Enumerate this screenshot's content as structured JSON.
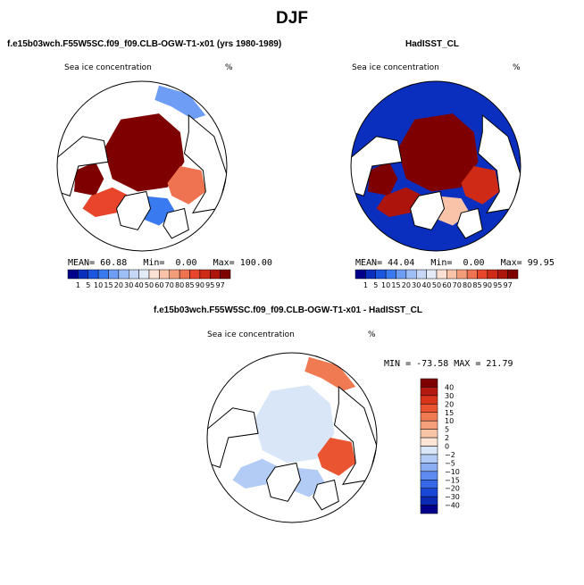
{
  "page": {
    "title": "DJF"
  },
  "panels": [
    {
      "case": "f.e15b03wch.F55W5SC.f09_f09.CLB-OGW-T1-x01 (yrs 1980-1989)",
      "variable": "Sea ice concentration",
      "units": "%",
      "stats": {
        "mean_label": "MEAN=",
        "mean": "60.88",
        "min_label": "Min=",
        "min": "0.00",
        "max_label": "Max=",
        "max": "100.00"
      }
    },
    {
      "case": "HadISST_CL",
      "variable": "Sea ice concentration",
      "units": "%",
      "stats": {
        "mean_label": "MEAN=",
        "mean": "44.04",
        "min_label": "Min=",
        "min": "0.00",
        "max_label": "Max=",
        "max": "99.95"
      }
    },
    {
      "case": "f.e15b03wch.F55W5SC.f09_f09.CLB-OGW-T1-x01 - HadISST_CL",
      "variable": "Sea ice concentration",
      "units": "%",
      "minmax": "MIN = -73.58  MAX =  21.79"
    }
  ],
  "colors": {
    "abs_scale": [
      "#00008b",
      "#0a2fbf",
      "#1a56e0",
      "#3a7af0",
      "#6d9df5",
      "#9dbef7",
      "#c6d7f7",
      "#e3ebf7",
      "#fbe1d2",
      "#f8c3a8",
      "#f49d7b",
      "#ef7351",
      "#e8452a",
      "#cf2a16",
      "#ad140c",
      "#7f0000"
    ],
    "diff_scale": [
      "#00008b",
      "#0b2bb5",
      "#1947d6",
      "#3768e8",
      "#5e8bef",
      "#8badf2",
      "#b3ccf5",
      "#d9e6f8",
      "#fbe6d6",
      "#f8c5a6",
      "#f5a07a",
      "#f07a52",
      "#ea5430",
      "#d9351a",
      "#b41a0e",
      "#7f0000"
    ],
    "coast": "#000000"
  },
  "chart_data": [
    {
      "type": "heatmap",
      "title": "Sea ice concentration",
      "projection": "north polar stereographic",
      "colorbar": {
        "labels": [
          "1",
          "5",
          "10",
          "15",
          "20",
          "30",
          "40",
          "50",
          "60",
          "70",
          "80",
          "85",
          "90",
          "95",
          "97"
        ],
        "orientation": "horizontal"
      },
      "regions": [
        {
          "name": "central-arctic",
          "value": 99
        },
        {
          "name": "hudson-bay",
          "value": 97
        },
        {
          "name": "baffin-labrador",
          "value": 85
        },
        {
          "name": "barents-kara",
          "value": 80
        },
        {
          "name": "greenland-sea",
          "value": 10
        },
        {
          "name": "bering-okhotsk",
          "value": 15
        },
        {
          "name": "north-atlantic",
          "value": 0
        }
      ]
    },
    {
      "type": "heatmap",
      "title": "Sea ice concentration",
      "projection": "north polar stereographic",
      "colorbar": {
        "labels": [
          "1",
          "5",
          "10",
          "15",
          "20",
          "30",
          "40",
          "50",
          "60",
          "70",
          "80",
          "85",
          "90",
          "95",
          "97"
        ],
        "orientation": "horizontal"
      },
      "regions": [
        {
          "name": "central-arctic",
          "value": 99.95
        },
        {
          "name": "hudson-bay",
          "value": 99
        },
        {
          "name": "baffin-labrador",
          "value": 95
        },
        {
          "name": "barents-kara",
          "value": 90
        },
        {
          "name": "greenland-sea",
          "value": 60
        },
        {
          "name": "bering-okhotsk",
          "value": 1
        },
        {
          "name": "north-atlantic",
          "value": 1
        }
      ]
    },
    {
      "type": "heatmap",
      "title": "Sea ice concentration",
      "projection": "north polar stereographic",
      "colorbar": {
        "labels": [
          "40",
          "30",
          "20",
          "15",
          "10",
          "5",
          "2",
          "0",
          "−2",
          "−5",
          "−10",
          "−15",
          "−20",
          "−30",
          "−40"
        ],
        "orientation": "vertical"
      },
      "regions": [
        {
          "name": "central-arctic",
          "value": -1
        },
        {
          "name": "bering-okhotsk",
          "value": 12
        },
        {
          "name": "barents-kara",
          "value": 15
        },
        {
          "name": "greenland-sea",
          "value": -4
        },
        {
          "name": "labrador",
          "value": -3
        },
        {
          "name": "north-atlantic",
          "value": 0
        }
      ]
    }
  ]
}
